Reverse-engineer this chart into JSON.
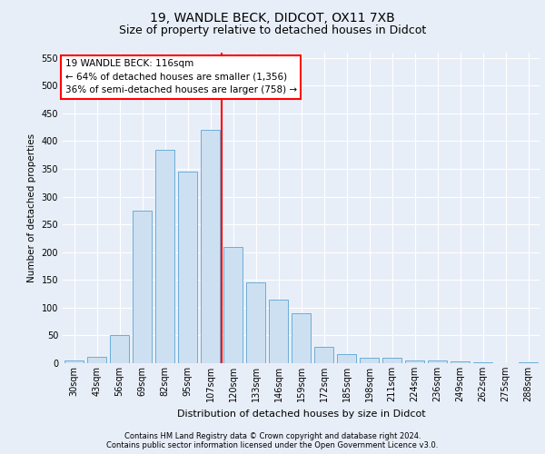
{
  "title_line1": "19, WANDLE BECK, DIDCOT, OX11 7XB",
  "title_line2": "Size of property relative to detached houses in Didcot",
  "xlabel": "Distribution of detached houses by size in Didcot",
  "ylabel": "Number of detached properties",
  "footer_line1": "Contains HM Land Registry data © Crown copyright and database right 2024.",
  "footer_line2": "Contains public sector information licensed under the Open Government Licence v3.0.",
  "categories": [
    "30sqm",
    "43sqm",
    "56sqm",
    "69sqm",
    "82sqm",
    "95sqm",
    "107sqm",
    "120sqm",
    "133sqm",
    "146sqm",
    "159sqm",
    "172sqm",
    "185sqm",
    "198sqm",
    "211sqm",
    "224sqm",
    "236sqm",
    "249sqm",
    "262sqm",
    "275sqm",
    "288sqm"
  ],
  "values": [
    5,
    12,
    50,
    275,
    385,
    345,
    420,
    210,
    145,
    115,
    90,
    30,
    17,
    10,
    10,
    5,
    5,
    3,
    2,
    0,
    2
  ],
  "bar_color": "#cde0f2",
  "bar_edge_color": "#6aaed6",
  "vline_color": "red",
  "vline_x_index": 7,
  "annotation_title": "19 WANDLE BECK: 116sqm",
  "annotation_line1": "← 64% of detached houses are smaller (1,356)",
  "annotation_line2": "36% of semi-detached houses are larger (758) →",
  "annotation_box_facecolor": "white",
  "annotation_box_edgecolor": "red",
  "ylim": [
    0,
    560
  ],
  "yticks": [
    0,
    50,
    100,
    150,
    200,
    250,
    300,
    350,
    400,
    450,
    500,
    550
  ],
  "background_color": "#e8eef8",
  "plot_bg_color": "#e8eef8",
  "grid_color": "white",
  "title1_fontsize": 10,
  "title2_fontsize": 9,
  "xlabel_fontsize": 8,
  "ylabel_fontsize": 7.5,
  "tick_fontsize": 7,
  "footer_fontsize": 6
}
